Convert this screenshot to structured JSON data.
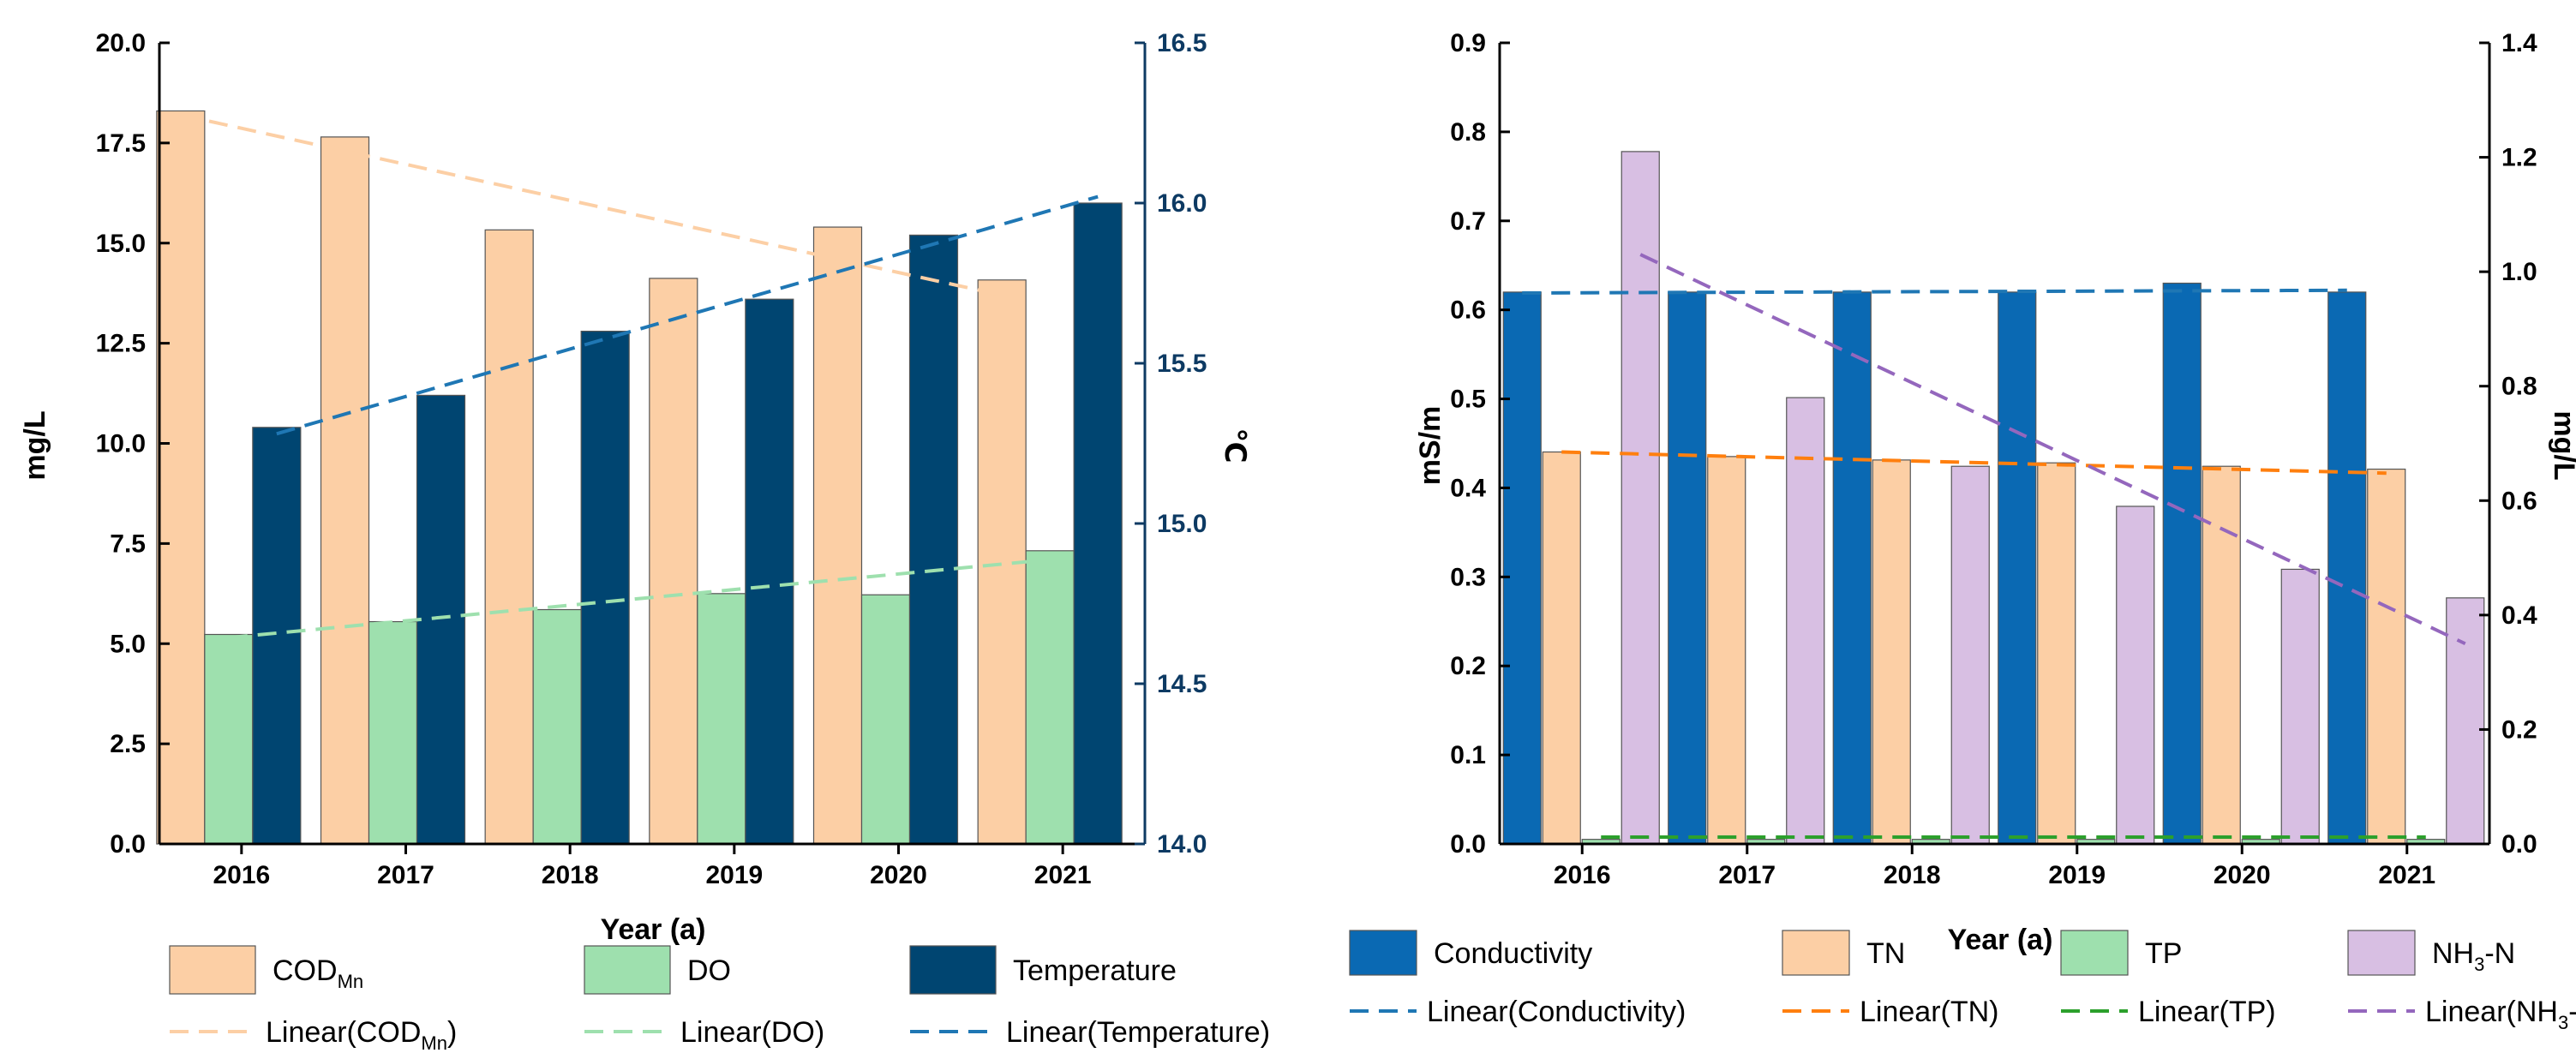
{
  "chart_data": [
    {
      "type": "bar",
      "categories": [
        "2016",
        "2017",
        "2018",
        "2019",
        "2020",
        "2021"
      ],
      "xlabel": "Year (a)",
      "ylabel": "mg/L",
      "ylabel_right": "℃",
      "ylim": [
        0,
        20
      ],
      "ylim_right": [
        14,
        16.5
      ],
      "yticks": [
        "0.0",
        "2.5",
        "5.0",
        "7.5",
        "10.0",
        "12.5",
        "15.0",
        "17.5",
        "20.0"
      ],
      "yticks_right": [
        "14.0",
        "14.5",
        "15.0",
        "15.5",
        "16.0",
        "16.5"
      ],
      "series": [
        {
          "name": "COD",
          "sub": "Mn",
          "axis": "left",
          "color": "#FCCFA5",
          "values": [
            18.3,
            17.65,
            15.33,
            14.12,
            15.4,
            14.08
          ]
        },
        {
          "name": "DO",
          "sub": "",
          "axis": "left",
          "color": "#9EE0AE",
          "values": [
            5.23,
            5.55,
            5.85,
            6.25,
            6.22,
            7.32
          ]
        },
        {
          "name": "Temperature",
          "sub": "",
          "axis": "right",
          "color": "#004571",
          "values": [
            15.3,
            15.4,
            15.6,
            15.7,
            15.9,
            16.0
          ]
        }
      ],
      "trendlines": [
        {
          "label": "Linear(COD",
          "sub": "Mn",
          "tail": ")",
          "series": "COD",
          "axis": "left",
          "color": "#FCCFA5",
          "from": 18.2,
          "to": 13.7
        },
        {
          "label": "Linear(DO)",
          "sub": "",
          "tail": "",
          "series": "DO",
          "axis": "left",
          "color": "#9EE0AE",
          "from": 5.15,
          "to": 7.1
        },
        {
          "label": "Linear(Temperature)",
          "sub": "",
          "tail": "",
          "series": "Temperature",
          "axis": "right",
          "color": "#1F77B4",
          "from": 15.28,
          "to": 16.02
        }
      ]
    },
    {
      "type": "bar",
      "categories": [
        "2016",
        "2017",
        "2018",
        "2019",
        "2020",
        "2021"
      ],
      "xlabel": "Year (a)",
      "ylabel": "mS/m",
      "ylabel_right": "mg/L",
      "ylim": [
        0,
        0.9
      ],
      "ylim_right": [
        0,
        1.4
      ],
      "yticks": [
        "0.0",
        "0.1",
        "0.2",
        "0.3",
        "0.4",
        "0.5",
        "0.6",
        "0.7",
        "0.8",
        "0.9"
      ],
      "yticks_right": [
        "0.0",
        "0.2",
        "0.4",
        "0.6",
        "0.8",
        "1.0",
        "1.2",
        "1.4"
      ],
      "series": [
        {
          "name": "Conductivity",
          "sub": "",
          "axis": "left",
          "color": "#0A69B3",
          "values": [
            0.62,
            0.62,
            0.62,
            0.62,
            0.63,
            0.62
          ]
        },
        {
          "name": "TN",
          "sub": "",
          "axis": "right",
          "color": "#FCCFA5",
          "values": [
            0.685,
            0.677,
            0.671,
            0.666,
            0.66,
            0.655
          ]
        },
        {
          "name": "TP",
          "sub": "",
          "axis": "right",
          "color": "#9EE0AE",
          "values": [
            0.008,
            0.008,
            0.008,
            0.008,
            0.008,
            0.008
          ]
        },
        {
          "name": "NH",
          "sub": "3",
          "tail": "-N",
          "axis": "right",
          "color": "#D8BFE3",
          "values": [
            1.21,
            0.78,
            0.66,
            0.59,
            0.48,
            0.43
          ]
        }
      ],
      "trendlines": [
        {
          "label": "Linear(Conductivity)",
          "sub": "",
          "tail": "",
          "series": "Conductivity",
          "axis": "left",
          "color": "#1F77B4",
          "from": 0.619,
          "to": 0.622
        },
        {
          "label": "Linear(TN)",
          "sub": "",
          "tail": "",
          "series": "TN",
          "axis": "right",
          "color": "#FF7F0E",
          "from": 0.685,
          "to": 0.648
        },
        {
          "label": "Linear(TP)",
          "sub": "",
          "tail": "",
          "series": "TP",
          "axis": "right",
          "color": "#2CA02C",
          "from": 0.012,
          "to": 0.012
        },
        {
          "label": "Linear(NH",
          "sub": "3",
          "tail": "-N)",
          "series": "NH3-N",
          "axis": "right",
          "color": "#9467BD",
          "from": 1.03,
          "to": 0.35
        }
      ]
    }
  ]
}
